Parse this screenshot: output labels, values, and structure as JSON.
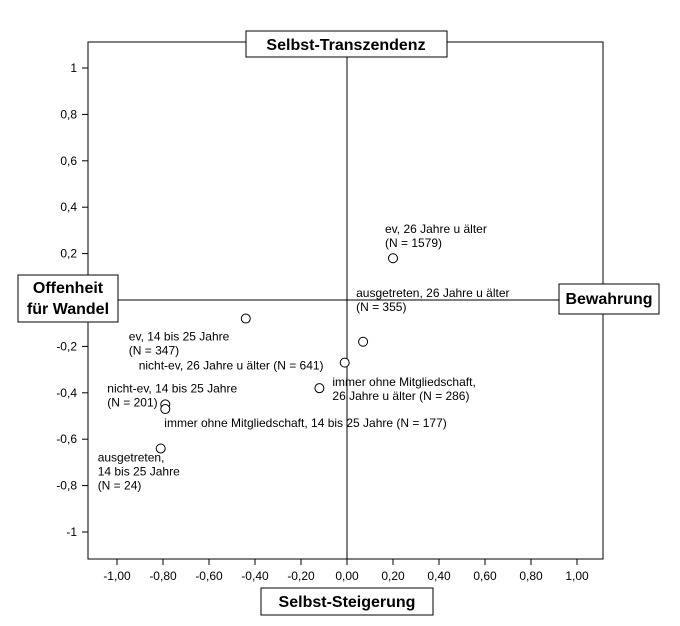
{
  "chart_data": {
    "type": "scatter",
    "xlim": [
      -1.1,
      1.1
    ],
    "ylim": [
      -1.1,
      1.1
    ],
    "xticks": [
      "-1,00",
      "-0,80",
      "-0,60",
      "-0,40",
      "-0,20",
      "0,00",
      "0,20",
      "0,40",
      "0,60",
      "0,80",
      "1,00"
    ],
    "yticks": [
      "1",
      "0,8",
      "0,6",
      "0,4",
      "0,2",
      "-0,2",
      "-0,4",
      "-0,6",
      "-0,8",
      "-1"
    ],
    "grid": false,
    "pole_labels": {
      "top": "Selbst-Transzendenz",
      "bottom": "Selbst-Steigerung",
      "left": [
        "Offenheit",
        "für Wandel"
      ],
      "right": "Bewahrung"
    },
    "points": [
      {
        "x": 0.2,
        "y": 0.18,
        "label": [
          "ev, 26 Jahre u älter",
          "(N = 1579)"
        ]
      },
      {
        "x": -0.44,
        "y": -0.08,
        "label": [
          "ev, 14 bis 25 Jahre",
          "(N = 347)"
        ]
      },
      {
        "x": 0.07,
        "y": -0.18,
        "label": [
          "ausgetreten, 26 Jahre u älter",
          "(N = 355)"
        ]
      },
      {
        "x": -0.01,
        "y": -0.27,
        "label": [
          "nicht-ev, 26 Jahre u älter (N = 641)"
        ]
      },
      {
        "x": -0.12,
        "y": -0.38,
        "label": [
          "immer ohne Mitgliedschaft,",
          "26 Jahre u älter (N = 286)"
        ]
      },
      {
        "x": -0.79,
        "y": -0.45,
        "label": [
          "nicht-ev, 14 bis 25 Jahre",
          "(N = 201)"
        ]
      },
      {
        "x": -0.79,
        "y": -0.47,
        "label": [
          "immer ohne Mitgliedschaft, 14 bis 25 Jahre (N = 177)"
        ]
      },
      {
        "x": -0.81,
        "y": -0.64,
        "label": [
          "ausgetreten,",
          "14 bis 25 Jahre",
          "(N = 24)"
        ]
      }
    ]
  }
}
